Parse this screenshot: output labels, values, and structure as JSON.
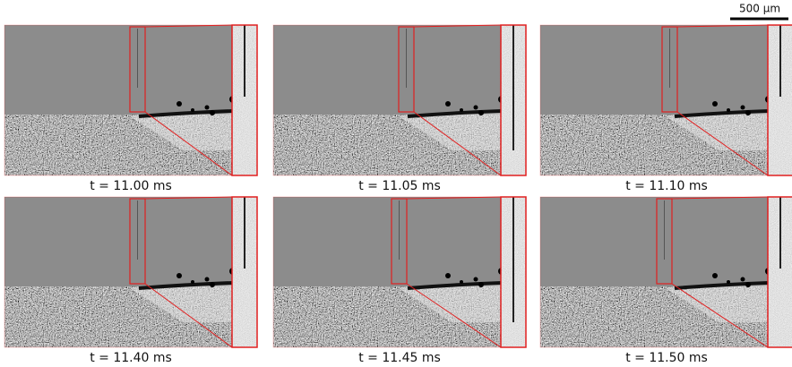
{
  "scale_bar": "500 µm",
  "panels": [
    {
      "label": "t = 11.00 ms"
    },
    {
      "label": "t = 11.05 ms"
    },
    {
      "label": "t = 11.10 ms"
    },
    {
      "label": "t = 11.40 ms"
    },
    {
      "label": "t = 11.45 ms"
    },
    {
      "label": "t = 11.50 ms"
    }
  ]
}
